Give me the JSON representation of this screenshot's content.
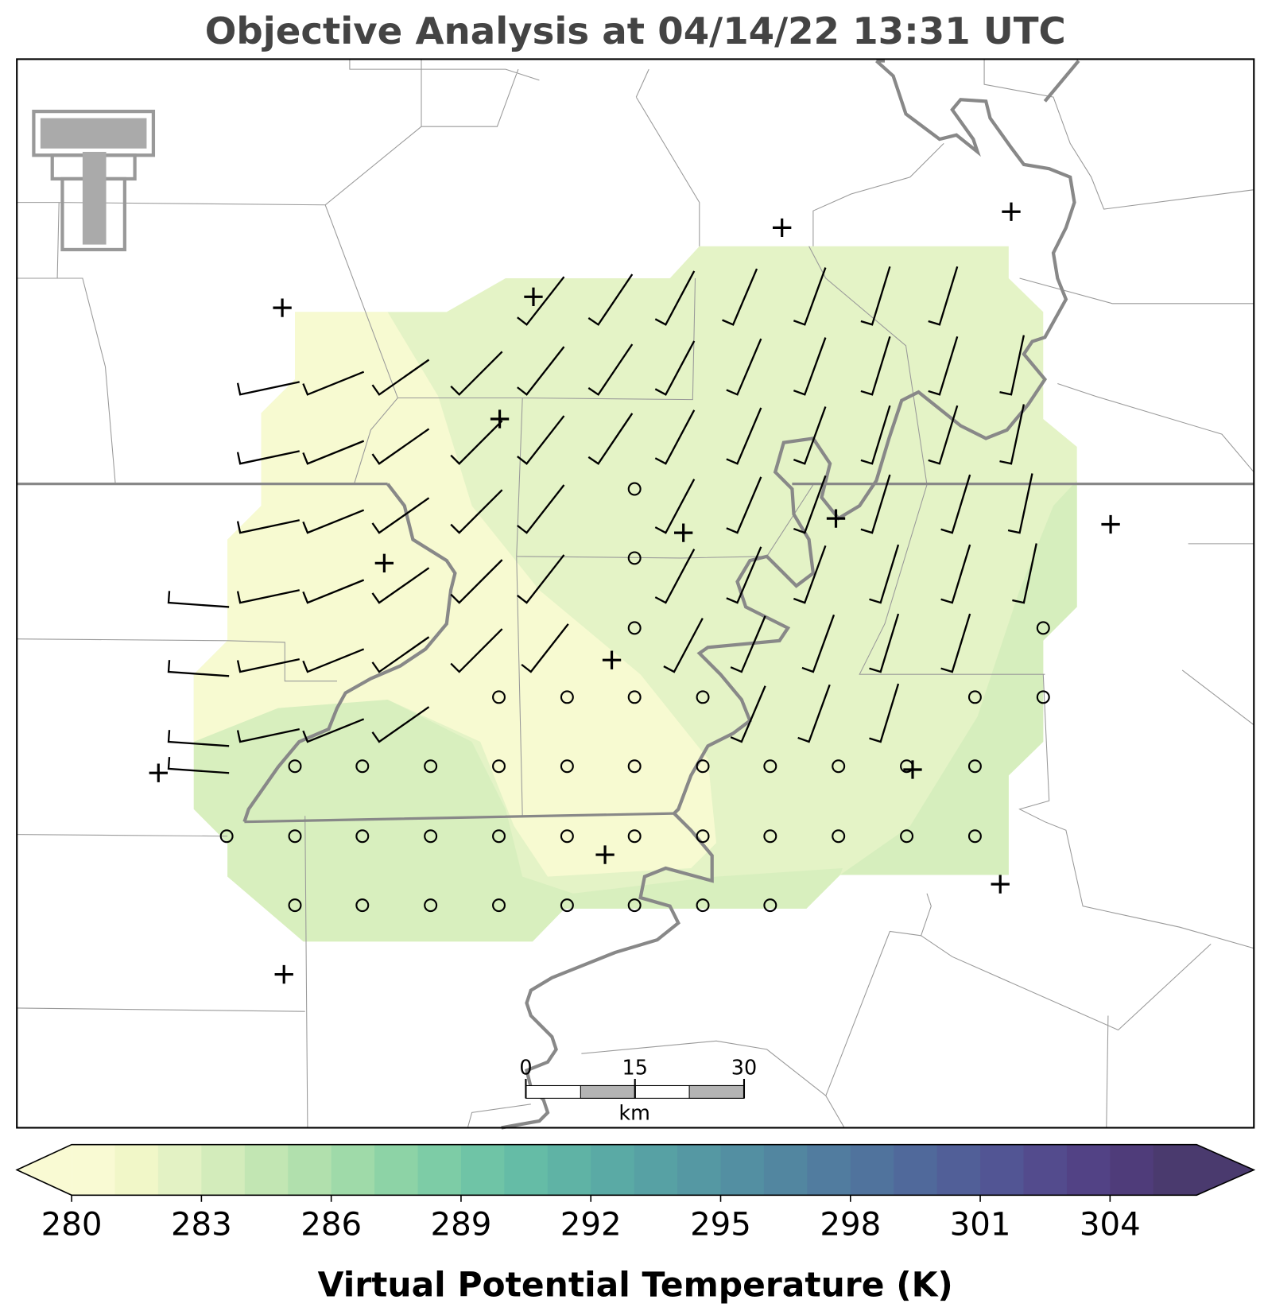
{
  "header": {
    "title": "Objective Analysis at 04/14/22 13:31 UTC"
  },
  "colorbar": {
    "label": "Virtual Potential Temperature (K)",
    "range": [
      280,
      306
    ],
    "ticks": [
      280,
      283,
      286,
      289,
      292,
      295,
      298,
      301,
      304
    ],
    "colors": [
      "#f9fad3",
      "#f1f7c8",
      "#e3f2c4",
      "#d3ecbb",
      "#c2e6b3",
      "#b1e0ad",
      "#9fdaa9",
      "#8dd3a6",
      "#7dcca6",
      "#6fc4a6",
      "#65bca6",
      "#5fb3a5",
      "#5aaaa5",
      "#57a1a4",
      "#5598a3",
      "#538fa2",
      "#5286a0",
      "#517c9f",
      "#50739d",
      "#50699b",
      "#515f98",
      "#525594",
      "#534b8d",
      "#524285",
      "#4f3c7a",
      "#4a3a6e"
    ]
  },
  "scale_bar": {
    "ticks": [
      0,
      15,
      30
    ],
    "unit": "km"
  }
}
